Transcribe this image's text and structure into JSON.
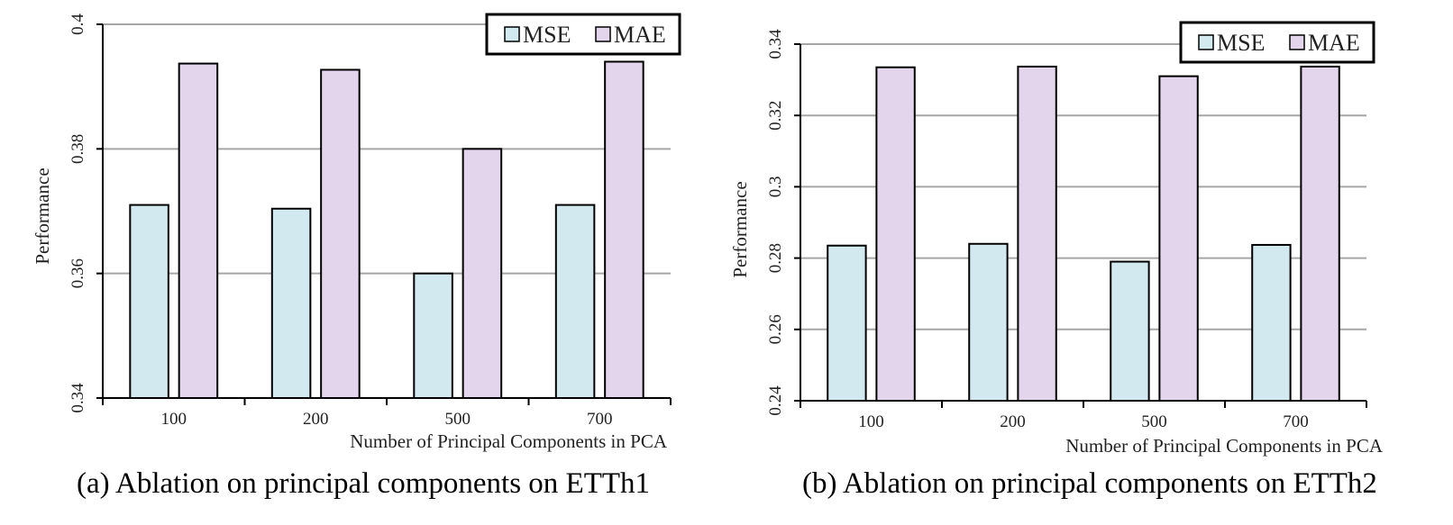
{
  "chart_data": [
    {
      "type": "bar",
      "caption": "(a) Ablation on principal components on ETTh1",
      "categories": [
        "100",
        "200",
        "500",
        "700"
      ],
      "series": [
        {
          "name": "MSE",
          "values": [
            0.371,
            0.3704,
            0.36,
            0.371
          ],
          "color": "#d2e9f0"
        },
        {
          "name": "MAE",
          "values": [
            0.3937,
            0.3927,
            0.38,
            0.394
          ],
          "color": "#e2d5ec"
        }
      ],
      "xlabel": "Number of Principal Components in PCA",
      "ylabel": "Performance",
      "ylim": [
        0.34,
        0.4
      ],
      "yticks": [
        "0.34",
        "0.36",
        "0.38",
        "0.4"
      ],
      "grid": true,
      "legend": "top-right"
    },
    {
      "type": "bar",
      "caption": "(b) Ablation on principal components on ETTh2",
      "categories": [
        "100",
        "200",
        "500",
        "700"
      ],
      "series": [
        {
          "name": "MSE",
          "values": [
            0.2835,
            0.284,
            0.279,
            0.2837
          ],
          "color": "#d2e9f0"
        },
        {
          "name": "MAE",
          "values": [
            0.3335,
            0.3337,
            0.331,
            0.3337
          ],
          "color": "#e2d5ec"
        }
      ],
      "xlabel": "Number of Principal Components in PCA",
      "ylabel": "Performance",
      "ylim": [
        0.24,
        0.34
      ],
      "yticks": [
        "0.24",
        "0.26",
        "0.28",
        "0.3",
        "0.32",
        "0.34"
      ],
      "grid": true,
      "legend": "top-right"
    }
  ]
}
